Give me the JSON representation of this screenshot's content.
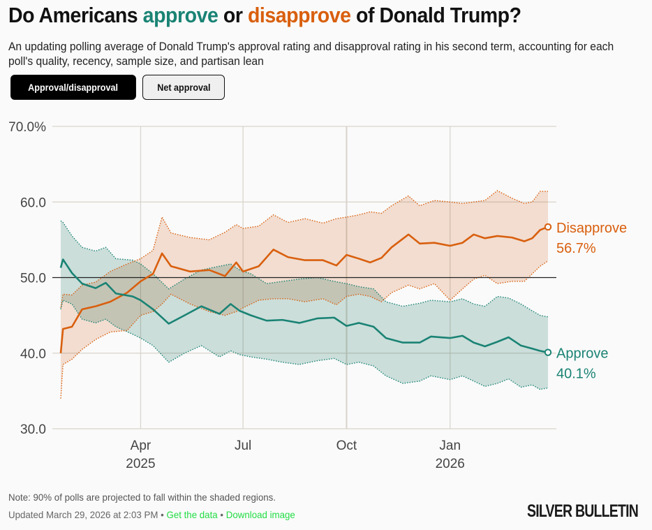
{
  "header": {
    "title_parts": {
      "pre": "Do Americans ",
      "approve": "approve",
      "mid": " or ",
      "disapprove": "disapprove",
      "post": " of Donald Trump?"
    },
    "subtitle": "An updating polling average of Donald Trump's approval rating and disapproval rating in his second term, accounting for each poll's quality, recency, sample size, and partisan lean"
  },
  "toggles": {
    "active_label": "Approval/disapproval",
    "inactive_label": "Net approval"
  },
  "colors": {
    "approve": "#1a8374",
    "approve_band": "#cfe3df",
    "disapprove": "#d95f0e",
    "disapprove_band": "#f5dac8",
    "overlap_band": "#d2c8b3",
    "grid": "#d9d3cb",
    "midline": "#222222"
  },
  "chart_data": {
    "type": "line",
    "title": "Do Americans approve or disapprove of Donald Trump?",
    "xlabel": "",
    "ylabel": "",
    "ylim": [
      30,
      70
    ],
    "xlim": [
      "2025-01-20",
      "2026-03-29"
    ],
    "y_ticks": [
      {
        "value": 70,
        "label": "70.0%"
      },
      {
        "value": 60,
        "label": "60.0"
      },
      {
        "value": 50,
        "label": "50.0"
      },
      {
        "value": 40,
        "label": "40.0"
      },
      {
        "value": 30,
        "label": "30.0"
      }
    ],
    "x_ticks": [
      {
        "date": "2025-04-01",
        "label": "Apr",
        "sublabel": "2025"
      },
      {
        "date": "2025-07-01",
        "label": "Jul",
        "sublabel": ""
      },
      {
        "date": "2025-10-01",
        "label": "Oct",
        "sublabel": ""
      },
      {
        "date": "2026-01-01",
        "label": "Jan",
        "sublabel": "2026"
      }
    ],
    "reference_line": 50,
    "grid": true,
    "band_note": "90% of polls projected within shaded regions",
    "series": [
      {
        "name": "Disapprove",
        "final_label": "56.7%",
        "final_value": 56.7,
        "points": [
          {
            "date": "2025-01-20",
            "value": 40.0,
            "lower": 34.0,
            "upper": 46.0
          },
          {
            "date": "2025-01-22",
            "value": 43.2,
            "lower": 38.5,
            "upper": 47.8
          },
          {
            "date": "2025-01-30",
            "value": 43.5,
            "lower": 39.2,
            "upper": 47.7
          },
          {
            "date": "2025-02-08",
            "value": 45.8,
            "lower": 40.5,
            "upper": 49.0
          },
          {
            "date": "2025-02-20",
            "value": 46.2,
            "lower": 41.8,
            "upper": 49.4
          },
          {
            "date": "2025-03-05",
            "value": 46.8,
            "lower": 42.8,
            "upper": 50.8
          },
          {
            "date": "2025-03-20",
            "value": 48.0,
            "lower": 43.0,
            "upper": 51.8
          },
          {
            "date": "2025-04-01",
            "value": 49.5,
            "lower": 45.0,
            "upper": 52.5
          },
          {
            "date": "2025-04-12",
            "value": 50.5,
            "lower": 45.5,
            "upper": 53.6
          },
          {
            "date": "2025-04-20",
            "value": 53.2,
            "lower": 46.5,
            "upper": 58.0
          },
          {
            "date": "2025-04-28",
            "value": 51.5,
            "lower": 47.8,
            "upper": 55.9
          },
          {
            "date": "2025-05-15",
            "value": 50.8,
            "lower": 46.5,
            "upper": 55.3
          },
          {
            "date": "2025-06-01",
            "value": 51.0,
            "lower": 45.5,
            "upper": 55.0
          },
          {
            "date": "2025-06-15",
            "value": 50.2,
            "lower": 45.0,
            "upper": 56.0
          },
          {
            "date": "2025-06-25",
            "value": 52.0,
            "lower": 45.5,
            "upper": 57.0
          },
          {
            "date": "2025-07-01",
            "value": 50.8,
            "lower": 46.0,
            "upper": 56.5
          },
          {
            "date": "2025-07-15",
            "value": 51.5,
            "lower": 47.0,
            "upper": 56.8
          },
          {
            "date": "2025-07-28",
            "value": 53.7,
            "lower": 47.2,
            "upper": 58.3
          },
          {
            "date": "2025-08-10",
            "value": 52.7,
            "lower": 47.2,
            "upper": 57.3
          },
          {
            "date": "2025-08-25",
            "value": 52.3,
            "lower": 46.8,
            "upper": 57.8
          },
          {
            "date": "2025-09-10",
            "value": 52.3,
            "lower": 47.2,
            "upper": 57.2
          },
          {
            "date": "2025-09-22",
            "value": 51.6,
            "lower": 46.4,
            "upper": 57.8
          },
          {
            "date": "2025-10-01",
            "value": 53.0,
            "lower": 47.5,
            "upper": 58.0
          },
          {
            "date": "2025-10-12",
            "value": 52.5,
            "lower": 47.8,
            "upper": 58.3
          },
          {
            "date": "2025-10-22",
            "value": 52.0,
            "lower": 47.5,
            "upper": 58.7
          },
          {
            "date": "2025-11-01",
            "value": 52.6,
            "lower": 46.8,
            "upper": 58.5
          },
          {
            "date": "2025-11-10",
            "value": 54.0,
            "lower": 48.0,
            "upper": 59.5
          },
          {
            "date": "2025-11-25",
            "value": 55.7,
            "lower": 49.0,
            "upper": 60.8
          },
          {
            "date": "2025-12-05",
            "value": 54.5,
            "lower": 48.5,
            "upper": 59.5
          },
          {
            "date": "2025-12-18",
            "value": 54.6,
            "lower": 49.2,
            "upper": 60.2
          },
          {
            "date": "2026-01-01",
            "value": 54.2,
            "lower": 47.0,
            "upper": 60.0
          },
          {
            "date": "2026-01-12",
            "value": 54.6,
            "lower": 48.5,
            "upper": 59.8
          },
          {
            "date": "2026-01-22",
            "value": 55.7,
            "lower": 49.8,
            "upper": 60.0
          },
          {
            "date": "2026-02-01",
            "value": 55.2,
            "lower": 50.3,
            "upper": 60.2
          },
          {
            "date": "2026-02-12",
            "value": 55.5,
            "lower": 49.2,
            "upper": 61.5
          },
          {
            "date": "2026-02-25",
            "value": 55.3,
            "lower": 49.5,
            "upper": 60.5
          },
          {
            "date": "2026-03-08",
            "value": 54.8,
            "lower": 49.5,
            "upper": 59.8
          },
          {
            "date": "2026-03-15",
            "value": 55.2,
            "lower": 50.5,
            "upper": 60.0
          },
          {
            "date": "2026-03-22",
            "value": 56.3,
            "lower": 51.5,
            "upper": 61.4
          },
          {
            "date": "2026-03-29",
            "value": 56.7,
            "lower": 52.2,
            "upper": 61.4
          }
        ]
      },
      {
        "name": "Approve",
        "final_label": "40.1%",
        "final_value": 40.1,
        "points": [
          {
            "date": "2025-01-20",
            "value": 51.3,
            "lower": 45.8,
            "upper": 57.5
          },
          {
            "date": "2025-01-22",
            "value": 52.4,
            "lower": 47.0,
            "upper": 57.3
          },
          {
            "date": "2025-01-30",
            "value": 50.6,
            "lower": 46.5,
            "upper": 55.5
          },
          {
            "date": "2025-02-08",
            "value": 49.2,
            "lower": 44.5,
            "upper": 54.0
          },
          {
            "date": "2025-02-20",
            "value": 48.6,
            "lower": 44.0,
            "upper": 53.5
          },
          {
            "date": "2025-03-01",
            "value": 49.3,
            "lower": 44.5,
            "upper": 54.0
          },
          {
            "date": "2025-03-10",
            "value": 47.9,
            "lower": 43.5,
            "upper": 52.5
          },
          {
            "date": "2025-03-25",
            "value": 47.5,
            "lower": 42.5,
            "upper": 52.3
          },
          {
            "date": "2025-04-01",
            "value": 47.0,
            "lower": 42.0,
            "upper": 51.8
          },
          {
            "date": "2025-04-12",
            "value": 45.8,
            "lower": 41.0,
            "upper": 50.5
          },
          {
            "date": "2025-04-26",
            "value": 43.9,
            "lower": 38.8,
            "upper": 48.5
          },
          {
            "date": "2025-05-10",
            "value": 45.0,
            "lower": 40.0,
            "upper": 49.8
          },
          {
            "date": "2025-05-25",
            "value": 46.2,
            "lower": 41.0,
            "upper": 51.0
          },
          {
            "date": "2025-06-10",
            "value": 45.2,
            "lower": 39.5,
            "upper": 51.5
          },
          {
            "date": "2025-06-20",
            "value": 46.5,
            "lower": 40.3,
            "upper": 51.8
          },
          {
            "date": "2025-06-28",
            "value": 45.6,
            "lower": 39.8,
            "upper": 51.0
          },
          {
            "date": "2025-07-08",
            "value": 45.0,
            "lower": 39.5,
            "upper": 50.5
          },
          {
            "date": "2025-07-22",
            "value": 44.3,
            "lower": 39.2,
            "upper": 49.2
          },
          {
            "date": "2025-08-05",
            "value": 44.4,
            "lower": 38.8,
            "upper": 49.5
          },
          {
            "date": "2025-08-20",
            "value": 44.0,
            "lower": 38.5,
            "upper": 49.8
          },
          {
            "date": "2025-09-05",
            "value": 44.6,
            "lower": 39.0,
            "upper": 50.0
          },
          {
            "date": "2025-09-20",
            "value": 44.7,
            "lower": 39.3,
            "upper": 49.5
          },
          {
            "date": "2025-10-01",
            "value": 43.6,
            "lower": 38.5,
            "upper": 49.2
          },
          {
            "date": "2025-10-12",
            "value": 44.0,
            "lower": 38.8,
            "upper": 48.8
          },
          {
            "date": "2025-10-25",
            "value": 43.5,
            "lower": 38.3,
            "upper": 48.5
          },
          {
            "date": "2025-11-05",
            "value": 42.0,
            "lower": 37.0,
            "upper": 46.8
          },
          {
            "date": "2025-11-20",
            "value": 41.4,
            "lower": 36.0,
            "upper": 46.2
          },
          {
            "date": "2025-12-05",
            "value": 41.4,
            "lower": 36.3,
            "upper": 46.6
          },
          {
            "date": "2025-12-15",
            "value": 42.2,
            "lower": 37.0,
            "upper": 47.0
          },
          {
            "date": "2026-01-01",
            "value": 42.0,
            "lower": 36.5,
            "upper": 46.8
          },
          {
            "date": "2026-01-12",
            "value": 42.3,
            "lower": 37.0,
            "upper": 47.2
          },
          {
            "date": "2026-01-22",
            "value": 41.4,
            "lower": 36.3,
            "upper": 46.5
          },
          {
            "date": "2026-02-01",
            "value": 40.9,
            "lower": 35.6,
            "upper": 46.2
          },
          {
            "date": "2026-02-12",
            "value": 41.5,
            "lower": 36.0,
            "upper": 47.5
          },
          {
            "date": "2026-02-22",
            "value": 42.1,
            "lower": 36.6,
            "upper": 47.3
          },
          {
            "date": "2026-03-05",
            "value": 41.0,
            "lower": 35.5,
            "upper": 46.5
          },
          {
            "date": "2026-03-15",
            "value": 40.6,
            "lower": 35.8,
            "upper": 45.6
          },
          {
            "date": "2026-03-22",
            "value": 40.3,
            "lower": 35.2,
            "upper": 45.0
          },
          {
            "date": "2026-03-29",
            "value": 40.1,
            "lower": 35.4,
            "upper": 44.8
          }
        ]
      }
    ]
  },
  "footer": {
    "note": "Note: 90% of polls are projected to fall within the shaded regions.",
    "updated": "Updated March 29, 2026 at 2:03 PM",
    "separator": " • ",
    "get_data_link": "Get the data",
    "download_link": "Download image",
    "brand": "SILVER BULLETIN"
  }
}
